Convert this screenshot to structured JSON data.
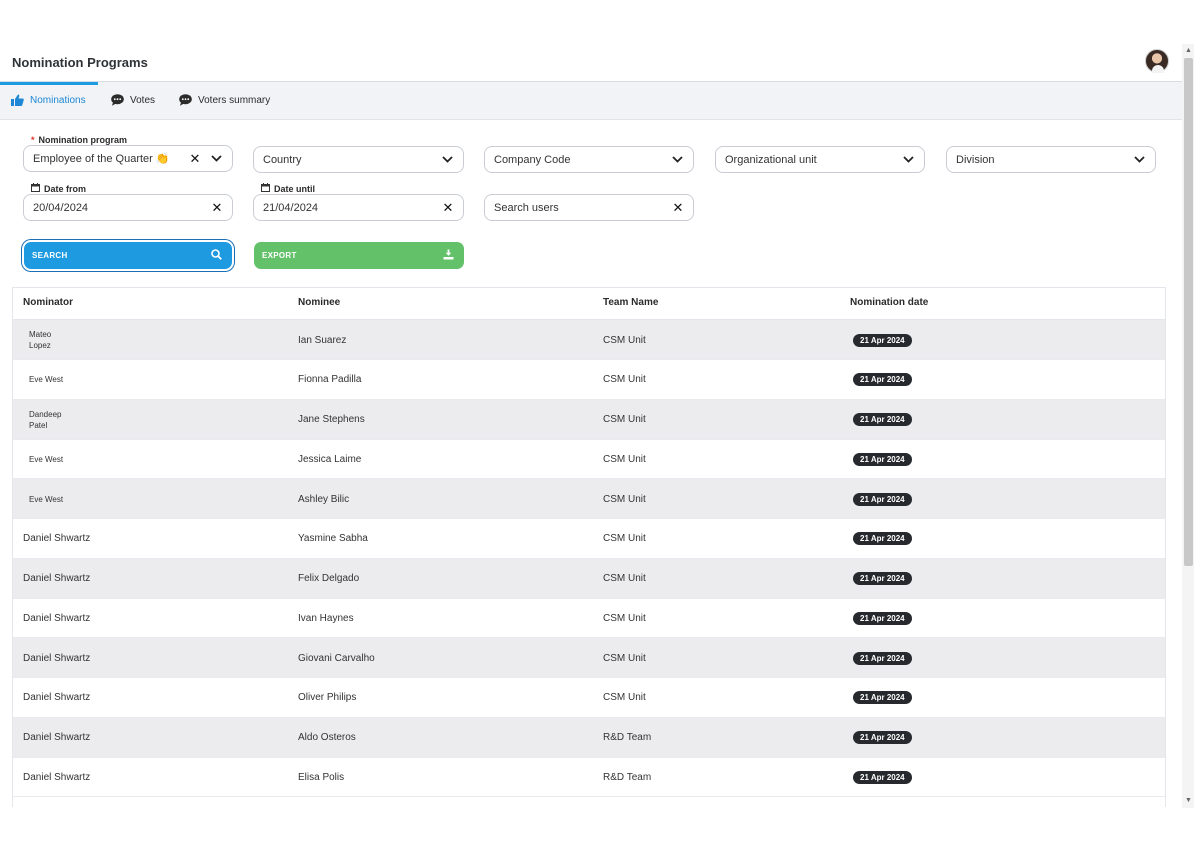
{
  "header": {
    "title": "Nomination Programs"
  },
  "tabs": [
    {
      "label": "Nominations",
      "icon": "thumbs-up-icon",
      "active": true
    },
    {
      "label": "Votes",
      "icon": "chat-bubble-icon",
      "active": false
    },
    {
      "label": "Voters summary",
      "icon": "chat-bubble-icon",
      "active": false
    }
  ],
  "filters": {
    "program_label": "Nomination program",
    "program_required": "*",
    "program_value": "Employee of the Quarter 👏",
    "country_placeholder": "Country",
    "company_placeholder": "Company Code",
    "org_unit_placeholder": "Organizational unit",
    "division_placeholder": "Division",
    "date_from_label": "Date from",
    "date_from_value": "20/04/2024",
    "date_until_label": "Date until",
    "date_until_value": "21/04/2024",
    "search_users_placeholder": "Search users"
  },
  "actions": {
    "search_label": "SEARCH",
    "export_label": "EXPORT"
  },
  "table": {
    "columns": [
      "Nominator",
      "Nominee",
      "Team Name",
      "Nomination date"
    ],
    "rows": [
      {
        "nominator": "Mateo\nLopez",
        "nominee": "Ian Suarez",
        "team": "CSM Unit",
        "date": "21 Apr 2024"
      },
      {
        "nominator": "Eve West",
        "nominee": "Fionna Padilla",
        "team": "CSM Unit",
        "date": "21 Apr 2024"
      },
      {
        "nominator": "Dandeep\nPatel",
        "nominee": "Jane Stephens",
        "team": "CSM Unit",
        "date": "21 Apr 2024"
      },
      {
        "nominator": "Eve West",
        "nominee": "Jessica Laime",
        "team": "CSM Unit",
        "date": "21 Apr 2024"
      },
      {
        "nominator": "Eve West",
        "nominee": "Ashley Bilic",
        "team": "CSM Unit",
        "date": "21 Apr 2024"
      },
      {
        "nominator": "Daniel Shwartz",
        "nominee": "Yasmine Sabha",
        "team": "CSM Unit",
        "date": "21 Apr 2024"
      },
      {
        "nominator": "Daniel Shwartz",
        "nominee": "Felix Delgado",
        "team": "CSM Unit",
        "date": "21 Apr 2024"
      },
      {
        "nominator": "Daniel Shwartz",
        "nominee": "Ivan Haynes",
        "team": "CSM Unit",
        "date": "21 Apr 2024"
      },
      {
        "nominator": "Daniel Shwartz",
        "nominee": "Giovani Carvalho",
        "team": "CSM Unit",
        "date": "21 Apr 2024"
      },
      {
        "nominator": "Daniel Shwartz",
        "nominee": "Oliver Philips",
        "team": "CSM Unit",
        "date": "21 Apr 2024"
      },
      {
        "nominator": "Daniel Shwartz",
        "nominee": "Aldo Osteros",
        "team": "R&D Team",
        "date": "21 Apr 2024"
      },
      {
        "nominator": "Daniel Shwartz",
        "nominee": "Elisa Polis",
        "team": "R&D Team",
        "date": "21 Apr 2024"
      }
    ]
  },
  "colors": {
    "accent": "#1e9be0",
    "export": "#63c16a",
    "badge": "#262a2f",
    "row_alt": "#ececee"
  }
}
